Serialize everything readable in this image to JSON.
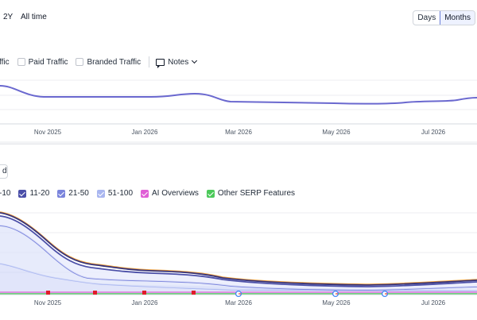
{
  "range": {
    "options": [
      "2Y",
      "All time"
    ]
  },
  "granularity": {
    "options": [
      "Days",
      "Months"
    ],
    "selected": "Months"
  },
  "traffic_legend": {
    "items": [
      {
        "label": "ffic"
      },
      {
        "label": "Paid Traffic"
      },
      {
        "label": "Branded Traffic"
      }
    ],
    "notes_label": "Notes"
  },
  "top_axis": {
    "labels": [
      "Nov 2025",
      "Jan 2026",
      "Mar 2026",
      "May 2026",
      "Jul 2026"
    ]
  },
  "partial_pill": "d",
  "positions_legend": {
    "items": [
      {
        "label": "-10",
        "color": "#35327a"
      },
      {
        "label": "11-20",
        "color": "#4b4fa8"
      },
      {
        "label": "21-50",
        "color": "#7a84dc"
      },
      {
        "label": "51-100",
        "color": "#a9b6f0"
      },
      {
        "label": "AI Overviews",
        "color": "#e05fd6"
      },
      {
        "label": "Other SERP Features",
        "color": "#4cc95a"
      }
    ]
  },
  "bottom_axis": {
    "labels": [
      "Nov 2025",
      "Jan 2026",
      "Mar 2026",
      "May 2026",
      "Jul 2026"
    ]
  },
  "colors": {
    "traffic_line": "#6a68cf",
    "accent": "#6b7fd7"
  },
  "icons": {
    "note_marker": "red-flag-icon",
    "google_marker": "google-g-icon"
  }
}
